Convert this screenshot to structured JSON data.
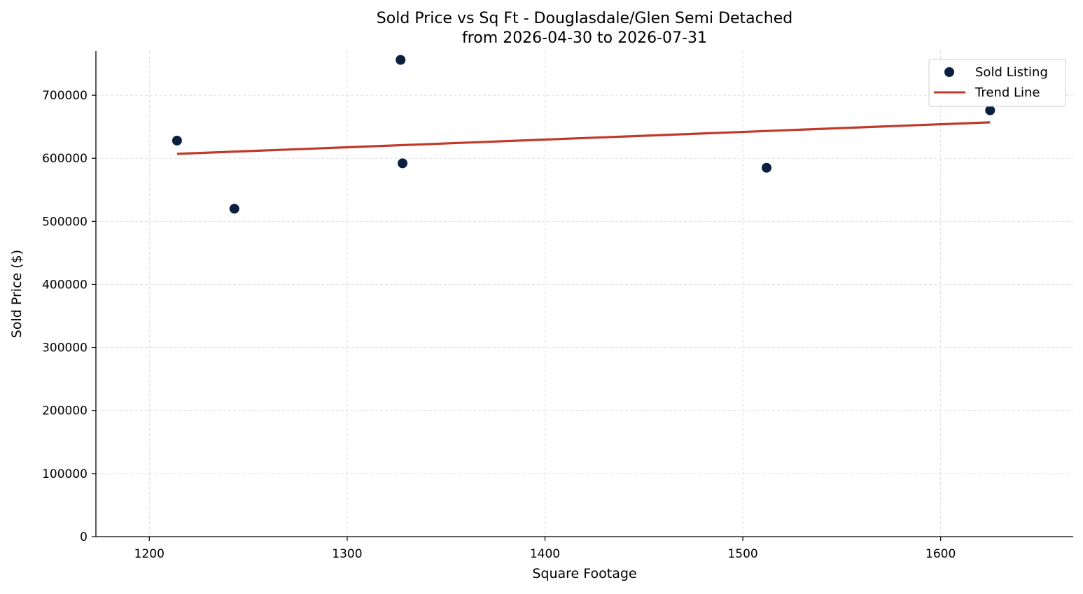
{
  "chart_data": {
    "type": "scatter",
    "title": "Sold Price vs Sq Ft - Douglasdale/Glen Semi Detached",
    "subtitle": "from 2026-04-30 to 2026-07-31",
    "xlabel": "Square Footage",
    "ylabel": "Sold Price ($)",
    "xlim": [
      1173,
      1667
    ],
    "ylim": [
      0,
      770000
    ],
    "xticks": [
      1200,
      1300,
      1400,
      1500,
      1600
    ],
    "yticks": [
      0,
      100000,
      200000,
      300000,
      400000,
      500000,
      600000,
      700000
    ],
    "grid": true,
    "legend_position": "top-right",
    "series": [
      {
        "name": "Sold Listing",
        "kind": "scatter",
        "color": "#0c1f3f",
        "points": [
          {
            "x": 1214,
            "y": 628000
          },
          {
            "x": 1243,
            "y": 520000
          },
          {
            "x": 1327,
            "y": 756000
          },
          {
            "x": 1328,
            "y": 592000
          },
          {
            "x": 1512,
            "y": 585000
          },
          {
            "x": 1625,
            "y": 676000
          }
        ]
      },
      {
        "name": "Trend Line",
        "kind": "line",
        "color": "#c0392b",
        "points": [
          {
            "x": 1214,
            "y": 607000
          },
          {
            "x": 1625,
            "y": 657000
          }
        ]
      }
    ]
  }
}
